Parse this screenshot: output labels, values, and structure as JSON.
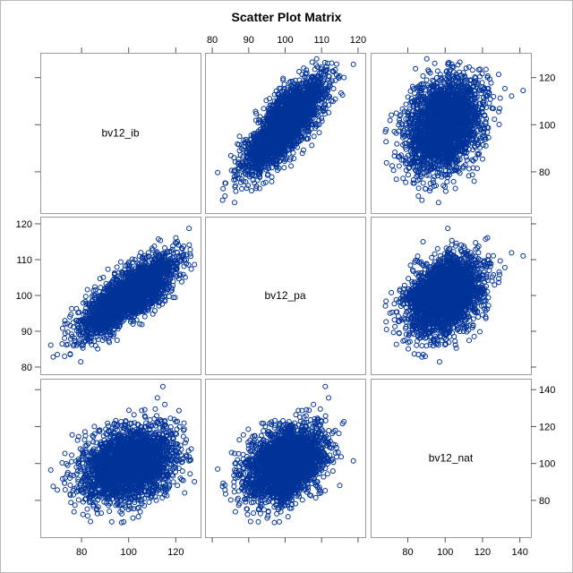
{
  "chart_data": {
    "type": "scatter",
    "title": "Scatter Plot Matrix",
    "variables": [
      "bv12_ib",
      "bv12_pa",
      "bv12_nat"
    ],
    "colors": {
      "marker": "#003399",
      "frame": "#9a9a9a",
      "background": "#ffffff"
    },
    "grid": false,
    "marker": "open-circle",
    "axes": [
      {
        "variable": "bv12_ib",
        "range": [
          64,
          129
        ],
        "ticks": [
          80,
          100,
          120
        ],
        "tick_labels": [
          "80",
          "100",
          "120"
        ],
        "label_position": "bottom"
      },
      {
        "variable": "bv12_pa",
        "range": [
          79,
          121
        ],
        "ticks": [
          80,
          90,
          100,
          110,
          120
        ],
        "tick_labels": [
          "80",
          "90",
          "100",
          "110",
          "120"
        ],
        "label_position": "top-and-left"
      },
      {
        "variable": "bv12_nat",
        "range": [
          62,
          144
        ],
        "ticks": [
          80,
          100,
          120,
          140
        ],
        "tick_labels": [
          "80",
          "100",
          "120",
          "140"
        ],
        "label_position": "bottom-and-right"
      }
    ],
    "distribution": {
      "n": 2600,
      "means": [
        100,
        100,
        100
      ],
      "sds": [
        10,
        5.5,
        10
      ],
      "correlations": [
        [
          1,
          0.78,
          0.32
        ],
        [
          0.78,
          1,
          0.35
        ],
        [
          0.32,
          0.35,
          1
        ]
      ]
    }
  }
}
